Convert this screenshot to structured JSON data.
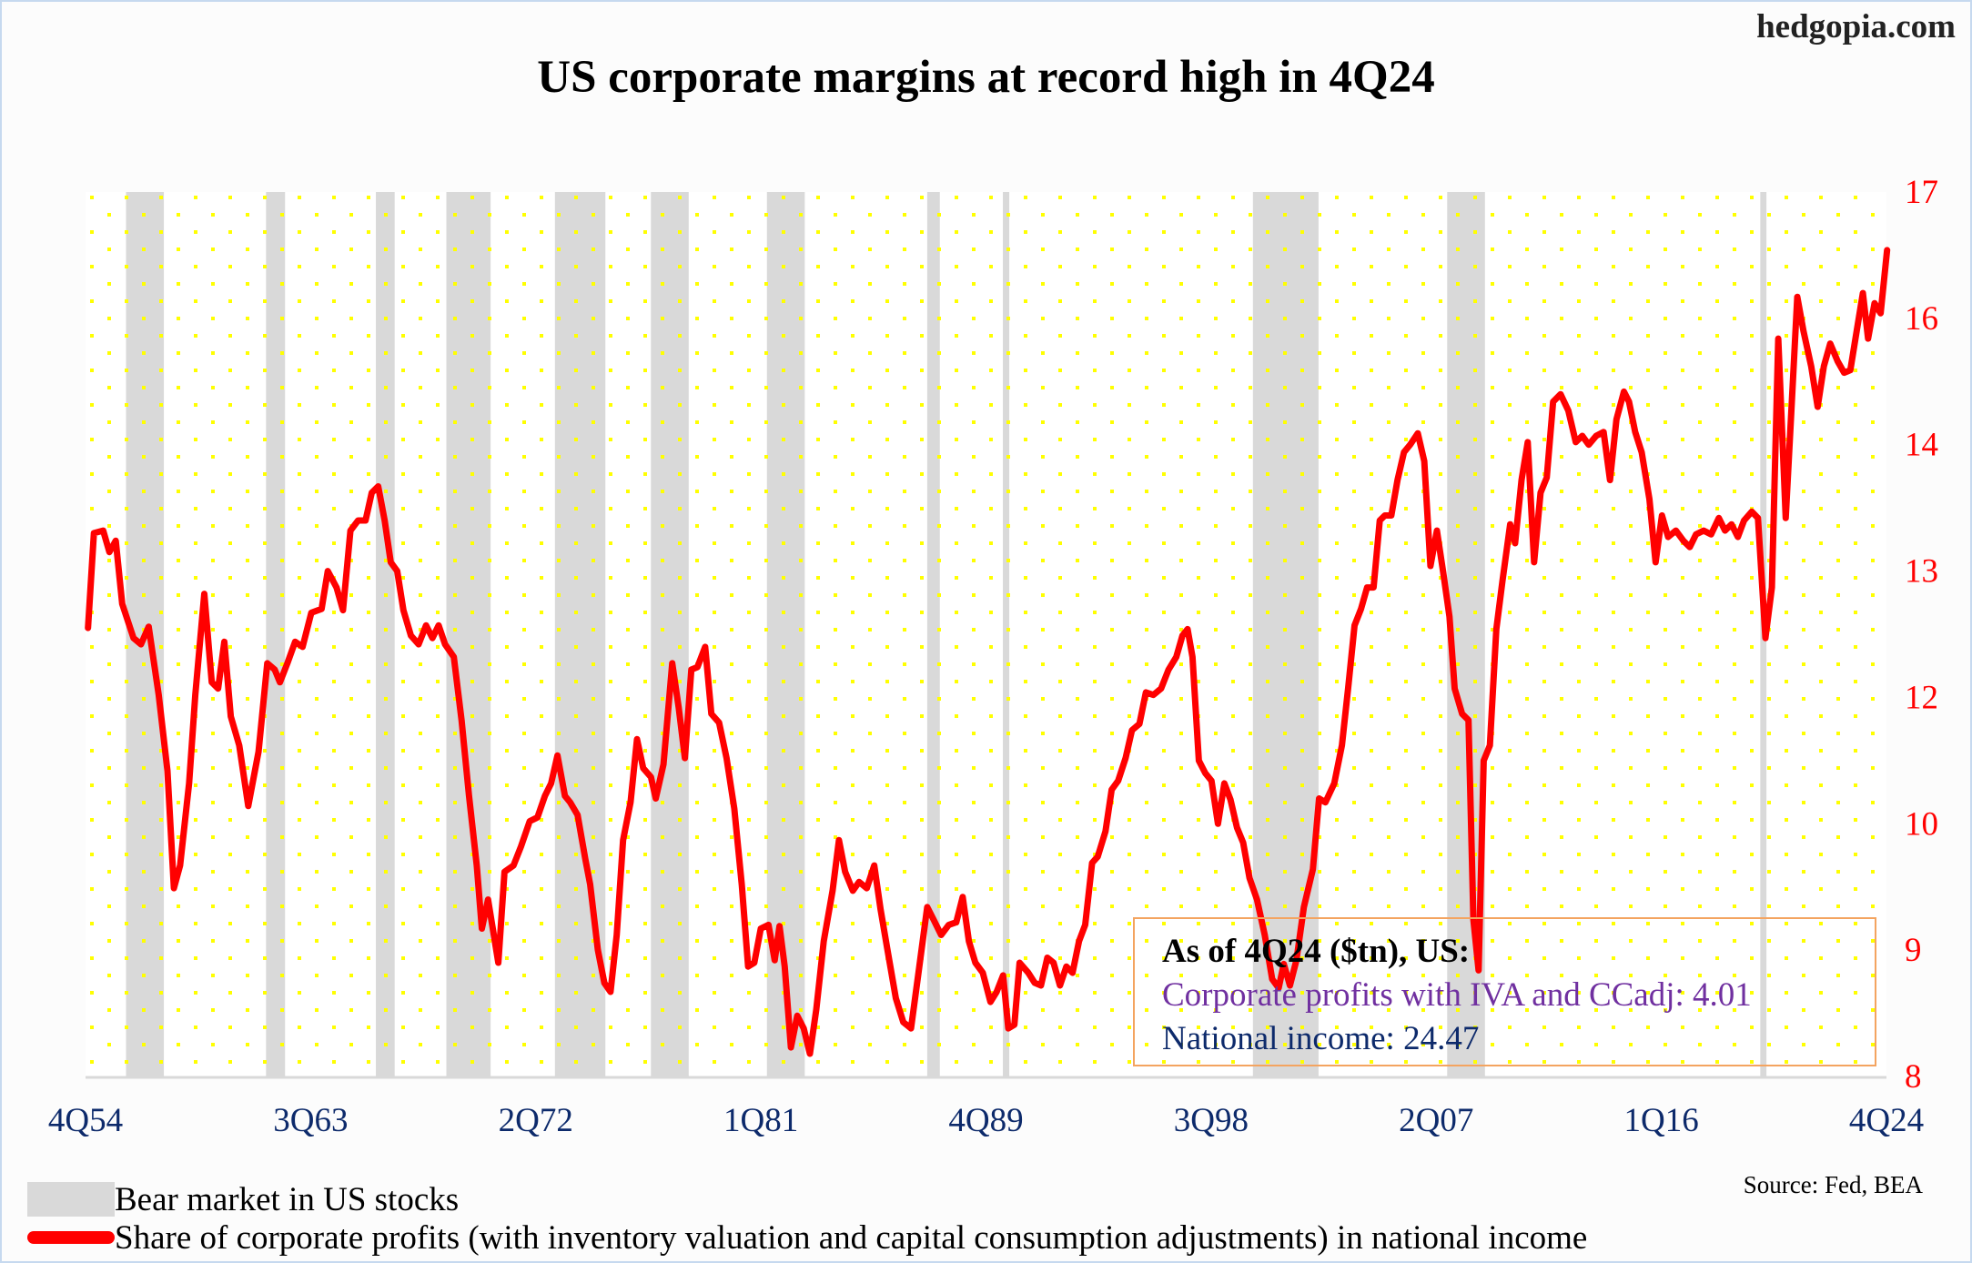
{
  "site": "hedgopia.com",
  "chart_data": {
    "type": "line",
    "title": "US corporate margins at record high in 4Q24",
    "xlabel": "",
    "ylabel": "",
    "yscale": "log",
    "ylim": [
      8,
      17
    ],
    "y_tick_labels": [
      "17",
      "16",
      "14",
      "13",
      "12",
      "10",
      "9",
      "8"
    ],
    "y_tick_values": [
      17,
      16,
      14,
      13,
      12,
      10,
      9,
      8
    ],
    "xlim": [
      1954.875,
      2024.875
    ],
    "x_tick_labels": [
      "4Q54",
      "3Q63",
      "2Q72",
      "1Q81",
      "4Q89",
      "3Q98",
      "2Q07",
      "1Q16",
      "4Q24"
    ],
    "x_tick_values": [
      1954.875,
      1963.625,
      1972.375,
      1981.125,
      1989.875,
      1998.625,
      2007.375,
      2016.125,
      2024.875
    ],
    "grid": false,
    "background": "yellow dotted pattern",
    "colors": {
      "line": "#ff0000",
      "bear": "#d9d9d9",
      "dots": "#ffff00",
      "ytick": "#ff0000",
      "xtick": "#0d2a6b"
    },
    "bear_markets": [
      [
        1956.45,
        1957.92
      ],
      [
        1961.89,
        1962.63
      ],
      [
        1966.16,
        1966.89
      ],
      [
        1968.9,
        1970.62
      ],
      [
        1973.12,
        1975.08
      ],
      [
        1976.85,
        1978.32
      ],
      [
        1981.36,
        1982.83
      ],
      [
        1987.59,
        1988.08
      ],
      [
        1990.53,
        1990.78
      ],
      [
        2000.25,
        2002.8
      ],
      [
        2007.8,
        2009.27
      ],
      [
        2019.97,
        2020.21
      ]
    ],
    "series": [
      {
        "name": "Share of corporate profits (with inventory valuation and capital consumption adjustments) in national income",
        "x": [
          1954.97,
          1955.2,
          1955.56,
          1955.8,
          1956.05,
          1956.3,
          1956.74,
          1957.03,
          1957.33,
          1957.72,
          1958.06,
          1958.31,
          1958.55,
          1958.9,
          1959.14,
          1959.49,
          1959.78,
          1960.03,
          1960.27,
          1960.52,
          1960.85,
          1961.2,
          1961.6,
          1961.94,
          1962.23,
          1962.43,
          1962.72,
          1963.02,
          1963.31,
          1963.65,
          1964.05,
          1964.29,
          1964.63,
          1964.88,
          1965.17,
          1965.47,
          1965.76,
          1966.0,
          1966.25,
          1966.5,
          1966.74,
          1966.99,
          1967.23,
          1967.52,
          1967.82,
          1968.11,
          1968.36,
          1968.6,
          1968.85,
          1969.19,
          1969.49,
          1969.78,
          1970.08,
          1970.28,
          1970.52,
          1970.92,
          1971.16,
          1971.51,
          1971.8,
          1972.14,
          1972.44,
          1972.73,
          1972.97,
          1973.22,
          1973.51,
          1973.71,
          1974.0,
          1974.3,
          1974.49,
          1974.79,
          1975.04,
          1975.28,
          1975.52,
          1975.77,
          1976.06,
          1976.31,
          1976.55,
          1976.85,
          1977.04,
          1977.34,
          1977.68,
          1977.93,
          1978.17,
          1978.42,
          1978.66,
          1978.96,
          1979.2,
          1979.5,
          1979.79,
          1980.09,
          1980.38,
          1980.63,
          1980.87,
          1981.12,
          1981.42,
          1981.66,
          1981.85,
          1982.05,
          1982.29,
          1982.54,
          1982.79,
          1983.03,
          1983.28,
          1983.57,
          1983.91,
          1984.16,
          1984.4,
          1984.7,
          1984.94,
          1985.24,
          1985.53,
          1985.78,
          1986.03,
          1986.37,
          1986.66,
          1986.96,
          1987.25,
          1987.59,
          1987.84,
          1988.13,
          1988.43,
          1988.72,
          1988.97,
          1989.21,
          1989.46,
          1989.75,
          1990.05,
          1990.29,
          1990.54,
          1990.74,
          1990.98,
          1991.18,
          1991.52,
          1991.77,
          1992.01,
          1992.26,
          1992.5,
          1992.75,
          1993.0,
          1993.24,
          1993.49,
          1993.73,
          1994.0,
          1994.22,
          1994.52,
          1994.76,
          1995.01,
          1995.3,
          1995.55,
          1995.84,
          1996.09,
          1996.38,
          1996.68,
          1996.97,
          1997.27,
          1997.51,
          1997.71,
          1997.9,
          1998.15,
          1998.4,
          1998.64,
          1998.89,
          1999.14,
          1999.38,
          1999.63,
          1999.87,
          2000.12,
          2000.41,
          2000.71,
          2001.0,
          2001.25,
          2001.45,
          2001.69,
          2001.94,
          2002.23,
          2002.58,
          2002.82,
          2003.07,
          2003.41,
          2003.71,
          2003.95,
          2004.2,
          2004.45,
          2004.69,
          2004.94,
          2005.18,
          2005.38,
          2005.63,
          2005.87,
          2006.12,
          2006.36,
          2006.66,
          2006.91,
          2007.15,
          2007.4,
          2007.64,
          2007.89,
          2008.09,
          2008.38,
          2008.63,
          2008.82,
          2009.02,
          2009.22,
          2009.46,
          2009.71,
          2009.95,
          2010.25,
          2010.44,
          2010.69,
          2010.93,
          2011.18,
          2011.43,
          2011.67,
          2011.92,
          2012.21,
          2012.51,
          2012.8,
          2013.05,
          2013.3,
          2013.59,
          2013.88,
          2014.13,
          2014.38,
          2014.67,
          2014.87,
          2015.11,
          2015.36,
          2015.66,
          2015.9,
          2016.15,
          2016.39,
          2016.69,
          2016.98,
          2017.23,
          2017.47,
          2017.77,
          2018.06,
          2018.36,
          2018.6,
          2018.85,
          2019.1,
          2019.34,
          2019.64,
          2019.88,
          2020.17,
          2020.42,
          2020.67,
          2020.96,
          2021.16,
          2021.41,
          2021.65,
          2021.95,
          2022.2,
          2022.44,
          2022.69,
          2022.98,
          2023.23,
          2023.47,
          2023.72,
          2023.96,
          2024.16,
          2024.41,
          2024.65,
          2024.9
        ],
        "values": [
          12.55,
          13.3,
          13.32,
          13.15,
          13.24,
          12.74,
          12.47,
          12.42,
          12.56,
          12.02,
          10.84,
          9.49,
          9.67,
          10.64,
          12.02,
          12.82,
          12.12,
          12.07,
          12.44,
          11.7,
          11.24,
          10.28,
          11.14,
          12.27,
          12.22,
          12.12,
          12.27,
          12.44,
          12.4,
          12.67,
          12.7,
          13.0,
          12.87,
          12.69,
          13.32,
          13.4,
          13.4,
          13.62,
          13.67,
          13.4,
          13.07,
          13.0,
          12.69,
          12.49,
          12.42,
          12.57,
          12.47,
          12.57,
          12.42,
          12.32,
          11.64,
          10.44,
          9.67,
          9.17,
          9.4,
          8.9,
          9.62,
          9.67,
          9.82,
          10.04,
          10.1,
          10.44,
          10.64,
          11.08,
          10.44,
          10.34,
          10.14,
          9.72,
          9.52,
          9.0,
          8.74,
          8.67,
          9.12,
          9.87,
          10.34,
          11.34,
          10.88,
          10.74,
          10.4,
          10.94,
          12.27,
          11.84,
          11.04,
          12.22,
          12.24,
          12.4,
          11.74,
          11.6,
          11.04,
          10.24,
          9.52,
          8.87,
          8.9,
          9.17,
          9.2,
          8.92,
          9.19,
          8.87,
          8.23,
          8.48,
          8.38,
          8.18,
          8.53,
          9.07,
          9.47,
          9.87,
          9.62,
          9.47,
          9.54,
          9.49,
          9.67,
          9.32,
          9.02,
          8.62,
          8.43,
          8.38,
          8.82,
          9.34,
          9.24,
          9.12,
          9.2,
          9.22,
          9.42,
          9.07,
          8.9,
          8.82,
          8.59,
          8.67,
          8.8,
          8.38,
          8.41,
          8.9,
          8.82,
          8.74,
          8.72,
          8.94,
          8.9,
          8.72,
          8.87,
          8.82,
          9.07,
          9.2,
          9.69,
          9.74,
          9.94,
          10.54,
          10.68,
          11.04,
          11.48,
          11.58,
          12.04,
          12.02,
          12.07,
          12.22,
          12.32,
          12.49,
          12.54,
          12.32,
          11.0,
          10.8,
          10.68,
          10.0,
          10.64,
          10.38,
          9.97,
          9.85,
          9.57,
          9.4,
          9.12,
          8.77,
          8.7,
          8.89,
          8.72,
          8.92,
          9.34,
          9.64,
          10.4,
          10.34,
          10.64,
          11.24,
          12.07,
          12.57,
          12.7,
          12.87,
          12.87,
          13.4,
          13.44,
          13.44,
          13.72,
          13.94,
          14.0,
          14.18,
          13.87,
          13.04,
          13.32,
          13.0,
          12.64,
          12.07,
          11.74,
          11.64,
          9.24,
          8.84,
          11.0,
          11.24,
          12.54,
          12.92,
          13.37,
          13.22,
          13.72,
          14.04,
          13.07,
          13.62,
          13.74,
          14.68,
          14.8,
          14.54,
          14.04,
          14.14,
          14.0,
          14.14,
          14.2,
          13.72,
          14.4,
          14.84,
          14.68,
          14.2,
          13.94,
          13.57,
          13.07,
          13.44,
          13.27,
          13.32,
          13.24,
          13.19,
          13.29,
          13.32,
          13.29,
          13.42,
          13.32,
          13.37,
          13.27,
          13.4,
          13.47,
          13.42,
          12.47,
          12.87,
          15.68,
          13.42,
          14.4,
          16.17,
          15.8,
          15.24,
          14.6,
          15.24,
          15.6,
          15.32,
          15.14,
          15.18,
          15.8,
          16.2,
          15.68,
          16.12,
          16.04,
          16.54
        ]
      }
    ],
    "legend": [
      {
        "label": "Bear market in US stocks",
        "type": "area"
      },
      {
        "label": "Share of corporate profits (with inventory valuation and capital consumption adjustments) in national income",
        "type": "line"
      }
    ],
    "legend_position": "bottom-left",
    "annotation": {
      "heading": "As of 4Q24 ($tn), US:",
      "line1": "Corporate profits with IVA and CCadj: 4.01",
      "line2": "National income: 24.47"
    },
    "source": "Source: Fed, BEA"
  }
}
